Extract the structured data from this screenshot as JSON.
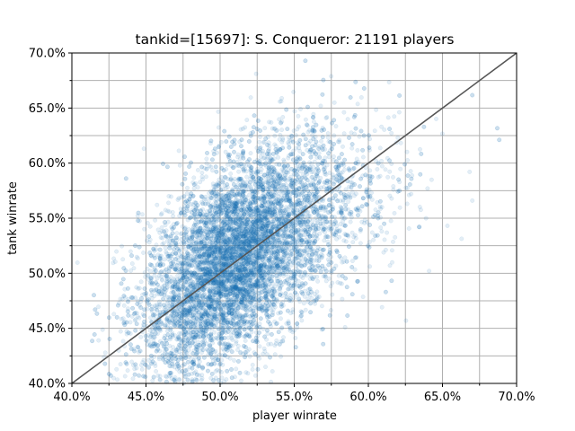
{
  "chart_data": {
    "type": "scatter",
    "title": "tankid=[15697]: S. Conqueror: 21191 players",
    "xlabel": "player winrate",
    "ylabel": "tank winrate",
    "xlim": [
      0.4,
      0.7
    ],
    "ylim": [
      0.4,
      0.7
    ],
    "x_ticks": [
      "40.0%",
      "45.0%",
      "50.0%",
      "55.0%",
      "60.0%",
      "65.0%",
      "70.0%"
    ],
    "y_ticks": [
      "40.0%",
      "45.0%",
      "50.0%",
      "55.0%",
      "60.0%",
      "65.0%",
      "70.0%"
    ],
    "x_tick_values": [
      0.4,
      0.45,
      0.5,
      0.55,
      0.6,
      0.65,
      0.7
    ],
    "y_tick_values": [
      0.4,
      0.45,
      0.5,
      0.55,
      0.6,
      0.65,
      0.7
    ],
    "grid": true,
    "minor_grid_step": 0.025,
    "player_count": 21191,
    "point_color": "#1f77b4",
    "point_alpha": 0.12,
    "reference_line": {
      "x": [
        0.4,
        0.7
      ],
      "y": [
        0.4,
        0.7
      ],
      "color": "#555555"
    },
    "distribution": {
      "x_mean": 0.512,
      "x_sd": 0.032,
      "y_mean": 0.515,
      "y_sd": 0.052,
      "correlation": 0.55,
      "points_drawn": 9000
    }
  }
}
